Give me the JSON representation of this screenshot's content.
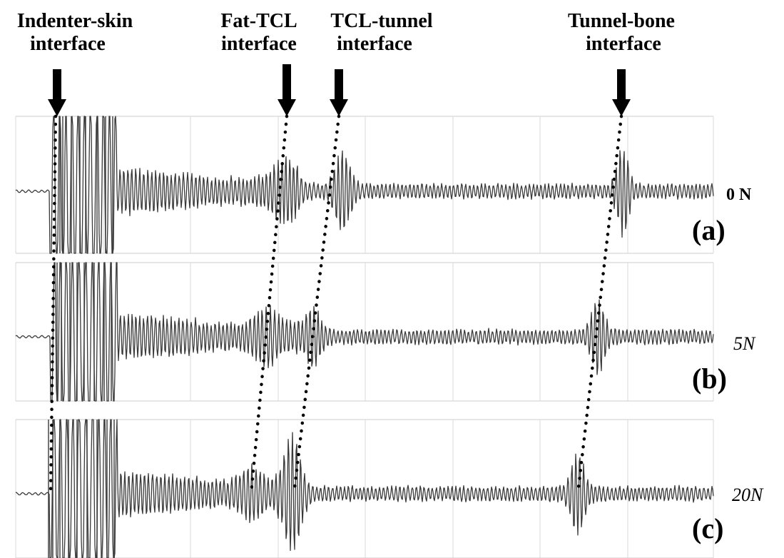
{
  "interfaces": [
    {
      "id": "indenter-skin",
      "label_lines": [
        "Indenter-skin",
        "interface"
      ]
    },
    {
      "id": "fat-tcl",
      "label_lines": [
        "Fat-TCL",
        "interface"
      ]
    },
    {
      "id": "tcl-tunnel",
      "label_lines": [
        "TCL-tunnel",
        "interface"
      ]
    },
    {
      "id": "tunnel-bone",
      "label_lines": [
        "Tunnel-bone",
        "interface"
      ]
    }
  ],
  "panels": [
    {
      "id": "a",
      "label": "(a)",
      "force": "0 N",
      "force_style": "bold"
    },
    {
      "id": "b",
      "label": "(b)",
      "force": "5N",
      "force_style": "italic"
    },
    {
      "id": "c",
      "label": "(c)",
      "force": "20N",
      "force_style": "italic"
    }
  ],
  "colors": {
    "signal": "#3a3a3a",
    "grid": "#d8d8d8",
    "arrow": "#000000",
    "dots": "#000000"
  }
}
